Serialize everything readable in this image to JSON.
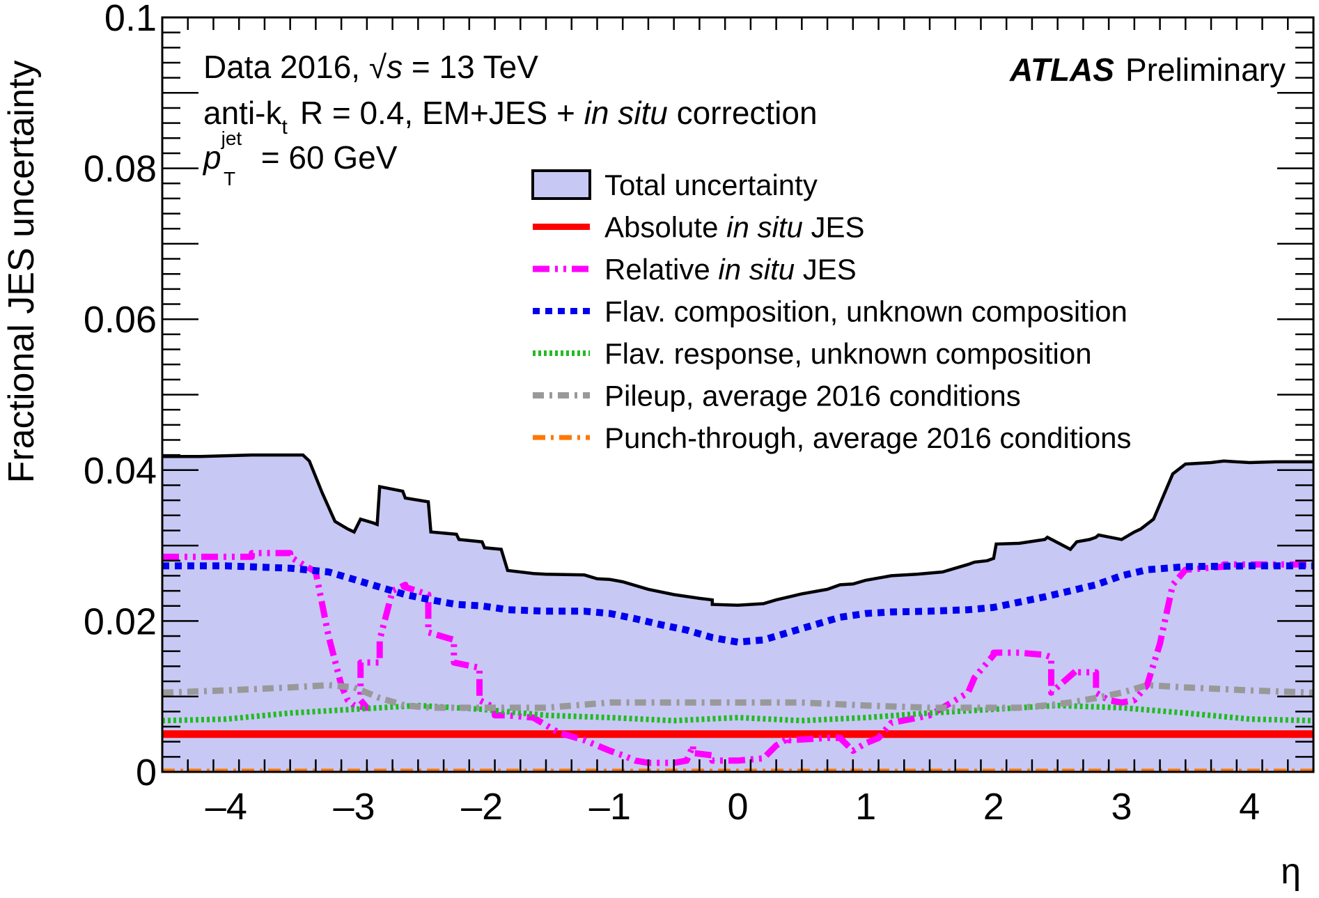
{
  "chart_data": {
    "type": "line",
    "title": "",
    "xlabel": "η",
    "ylabel": "Fractional JES uncertainty",
    "xlim": [
      -4.5,
      4.5
    ],
    "ylim": [
      0,
      0.1
    ],
    "x_ticks": [
      "–4",
      "–3",
      "–2",
      "–1",
      "0",
      "1",
      "2",
      "3",
      "4"
    ],
    "x_tick_values": [
      -4,
      -3,
      -2,
      -1,
      0,
      1,
      2,
      3,
      4
    ],
    "y_ticks": [
      "0",
      "0.02",
      "0.04",
      "0.06",
      "0.08",
      "0.1"
    ],
    "y_tick_values": [
      0,
      0.02,
      0.04,
      0.06,
      0.08,
      0.1
    ],
    "annotations": {
      "data_prefix": "Data 2016, ",
      "sqrt_s": "√s",
      "energy": " = 13 TeV",
      "atlas": "ATLAS",
      "preliminary": "Preliminary",
      "jet_prefix": "anti-k",
      "jet_sub": "t",
      "jet_r": "R = 0.4, EM+JES + ",
      "jet_insitu": "in situ",
      "jet_suffix": " correction",
      "pt_sym": "p",
      "pt_sup": "jet",
      "pt_sub": "T",
      "pt_value": " = 60 GeV"
    },
    "series": [
      {
        "name": "Total uncertainty",
        "label_parts": [
          "Total uncertainty"
        ],
        "color": "#c8c8f5",
        "edge_color": "#000000",
        "style": "filled",
        "x": [
          -4.5,
          -4.2,
          -3.8,
          -3.4,
          -3.35,
          -3.25,
          -3.15,
          -3.05,
          -3.0,
          -2.95,
          -2.85,
          -2.82,
          -2.8,
          -2.62,
          -2.6,
          -2.42,
          -2.4,
          -2.2,
          -2.18,
          -2.0,
          -1.98,
          -1.85,
          -1.8,
          -1.6,
          -1.5,
          -1.2,
          -1.1,
          -1.0,
          -0.9,
          -0.7,
          -0.5,
          -0.3,
          -0.2,
          -0.2,
          0.0,
          0.2,
          0.3,
          0.5,
          0.7,
          0.8,
          0.9,
          1.0,
          1.1,
          1.2,
          1.4,
          1.6,
          1.8,
          1.85,
          1.95,
          2.0,
          2.02,
          2.2,
          2.4,
          2.42,
          2.6,
          2.62,
          2.65,
          2.75,
          2.8,
          2.82,
          3.0,
          3.1,
          3.15,
          3.25,
          3.35,
          3.4,
          3.5,
          3.7,
          3.8,
          4.0,
          4.2,
          4.5
        ],
        "y": [
          0.0418,
          0.0418,
          0.042,
          0.042,
          0.0412,
          0.037,
          0.0332,
          0.0322,
          0.0318,
          0.0335,
          0.033,
          0.0328,
          0.0378,
          0.0372,
          0.0363,
          0.0358,
          0.0318,
          0.0315,
          0.0308,
          0.0305,
          0.0297,
          0.0295,
          0.0267,
          0.0263,
          0.0262,
          0.0261,
          0.0256,
          0.0255,
          0.0252,
          0.0242,
          0.0235,
          0.023,
          0.0228,
          0.0222,
          0.0221,
          0.0223,
          0.0228,
          0.0236,
          0.0242,
          0.0248,
          0.0249,
          0.0254,
          0.0257,
          0.026,
          0.0262,
          0.0265,
          0.0275,
          0.0278,
          0.028,
          0.0283,
          0.0302,
          0.0303,
          0.0308,
          0.0311,
          0.0295,
          0.0299,
          0.0305,
          0.0308,
          0.0311,
          0.0314,
          0.0308,
          0.0318,
          0.0322,
          0.0335,
          0.0375,
          0.0395,
          0.0408,
          0.041,
          0.0412,
          0.041,
          0.0411,
          0.0411
        ]
      },
      {
        "name": "Absolute in situ JES",
        "label_parts": [
          "Absolute ",
          "in situ",
          " JES"
        ],
        "color": "#ff0000",
        "dash": "",
        "width": 11,
        "x": [
          -4.5,
          4.5
        ],
        "y": [
          0.005,
          0.005
        ]
      },
      {
        "name": "Relative in situ JES",
        "label_parts": [
          "Relative ",
          "in situ",
          " JES"
        ],
        "color": "#ff00ff",
        "dash": "24 8 4 8 4 8",
        "width": 9,
        "x": [
          -4.5,
          -3.8,
          -3.8,
          -3.5,
          -3.5,
          -3.3,
          -3.2,
          -3.1,
          -3.05,
          -3.0,
          -2.9,
          -2.95,
          -2.95,
          -2.8,
          -2.8,
          -2.7,
          -2.6,
          -2.6,
          -2.42,
          -2.42,
          -2.22,
          -2.22,
          -2.02,
          -2.02,
          -1.9,
          -1.9,
          -1.8,
          -1.8,
          -1.6,
          -1.5,
          -1.4,
          -1.2,
          -1.1,
          -1.0,
          -0.9,
          -0.8,
          -0.7,
          -0.5,
          -0.4,
          -0.35,
          -0.35,
          -0.2,
          -0.2,
          0.0,
          0.2,
          0.3,
          0.4,
          0.4,
          0.7,
          0.8,
          0.9,
          1.0,
          1.1,
          1.2,
          1.5,
          1.6,
          1.7,
          1.8,
          1.85,
          1.85,
          2.0,
          2.0,
          2.2,
          2.4,
          2.45,
          2.45,
          2.65,
          2.65,
          2.8,
          2.8,
          2.9,
          3.0,
          3.1,
          3.2,
          3.3,
          3.4,
          3.5,
          3.8,
          3.8,
          4.5
        ],
        "y": [
          0.0285,
          0.0285,
          0.029,
          0.029,
          0.0285,
          0.0265,
          0.018,
          0.0115,
          0.0095,
          0.0088,
          0.0085,
          0.0095,
          0.0145,
          0.0145,
          0.0175,
          0.024,
          0.0248,
          0.0245,
          0.0235,
          0.0185,
          0.0175,
          0.0145,
          0.0138,
          0.0095,
          0.0085,
          0.0075,
          0.0075,
          0.0075,
          0.0072,
          0.0062,
          0.0052,
          0.0042,
          0.0035,
          0.0028,
          0.0022,
          0.0015,
          0.0012,
          0.0012,
          0.0015,
          0.0035,
          0.0025,
          0.0022,
          0.0015,
          0.0015,
          0.0018,
          0.0035,
          0.0045,
          0.0042,
          0.0045,
          0.0045,
          0.0028,
          0.0038,
          0.0045,
          0.0065,
          0.0075,
          0.0085,
          0.0095,
          0.0105,
          0.0125,
          0.0125,
          0.0155,
          0.0158,
          0.0158,
          0.0155,
          0.0152,
          0.0105,
          0.0135,
          0.0132,
          0.0132,
          0.0105,
          0.0095,
          0.0092,
          0.0095,
          0.0115,
          0.017,
          0.0248,
          0.0268,
          0.0272,
          0.0275,
          0.0275
        ]
      },
      {
        "name": "Flav. composition, unknown composition",
        "label_parts": [
          "Flav. composition, unknown composition"
        ],
        "color": "#0000ee",
        "dash": "10 8",
        "width": 10,
        "x": [
          -4.5,
          -4.0,
          -3.5,
          -3.2,
          -3.0,
          -2.8,
          -2.6,
          -2.4,
          -2.2,
          -2.0,
          -1.8,
          -1.5,
          -1.2,
          -1.0,
          -0.8,
          -0.6,
          -0.4,
          -0.2,
          0.0,
          0.2,
          0.4,
          0.6,
          0.8,
          1.0,
          1.2,
          1.5,
          1.8,
          2.0,
          2.2,
          2.4,
          2.6,
          2.8,
          3.0,
          3.2,
          3.5,
          4.0,
          4.5
        ],
        "y": [
          0.0273,
          0.0273,
          0.027,
          0.0265,
          0.0255,
          0.0245,
          0.0235,
          0.0228,
          0.0222,
          0.022,
          0.0215,
          0.0213,
          0.0213,
          0.021,
          0.0203,
          0.0195,
          0.0188,
          0.0178,
          0.0172,
          0.0175,
          0.0185,
          0.0195,
          0.0205,
          0.021,
          0.0212,
          0.0213,
          0.0215,
          0.0218,
          0.0225,
          0.0232,
          0.024,
          0.0248,
          0.026,
          0.0268,
          0.0272,
          0.0273,
          0.0273
        ]
      },
      {
        "name": "Flav. response, unknown composition",
        "label_parts": [
          "Flav. response, unknown composition"
        ],
        "color": "#22bb22",
        "dash": "4 4",
        "width": 8,
        "x": [
          -4.5,
          -4.0,
          -3.5,
          -3.0,
          -2.5,
          -2.0,
          -1.5,
          -1.0,
          -0.5,
          0.0,
          0.5,
          1.0,
          1.5,
          2.0,
          2.5,
          3.0,
          3.5,
          4.0,
          4.5
        ],
        "y": [
          0.0068,
          0.007,
          0.0078,
          0.0083,
          0.0088,
          0.0083,
          0.0075,
          0.0072,
          0.0068,
          0.0072,
          0.0068,
          0.0072,
          0.0078,
          0.0083,
          0.0088,
          0.0085,
          0.0078,
          0.007,
          0.0068
        ]
      },
      {
        "name": "Pileup, average 2016 conditions",
        "label_parts": [
          "Pileup, average 2016 conditions"
        ],
        "color": "#999999",
        "dash": "16 8 4 8",
        "width": 9,
        "x": [
          -4.5,
          -4.0,
          -3.5,
          -3.2,
          -3.0,
          -2.8,
          -2.6,
          -2.4,
          -2.2,
          -2.0,
          -1.5,
          -1.0,
          -0.5,
          0.0,
          0.5,
          1.0,
          1.5,
          2.0,
          2.2,
          2.4,
          2.6,
          2.8,
          3.0,
          3.2,
          3.5,
          4.0,
          4.5
        ],
        "y": [
          0.0105,
          0.0108,
          0.0112,
          0.0115,
          0.0112,
          0.0098,
          0.0088,
          0.0085,
          0.0085,
          0.0085,
          0.0085,
          0.0092,
          0.0092,
          0.0092,
          0.0092,
          0.0088,
          0.0085,
          0.0085,
          0.0085,
          0.0088,
          0.0092,
          0.0098,
          0.0105,
          0.0115,
          0.0112,
          0.0108,
          0.0105
        ]
      },
      {
        "name": "Punch-through, average 2016 conditions",
        "label_parts": [
          "Punch-through, average 2016 conditions"
        ],
        "color": "#ff7700",
        "dash": "18 8 4 8",
        "width": 7,
        "x": [
          -4.5,
          4.5
        ],
        "y": [
          0.0001,
          0.0001
        ]
      }
    ],
    "legend_position": "upper-right",
    "grid": false
  }
}
